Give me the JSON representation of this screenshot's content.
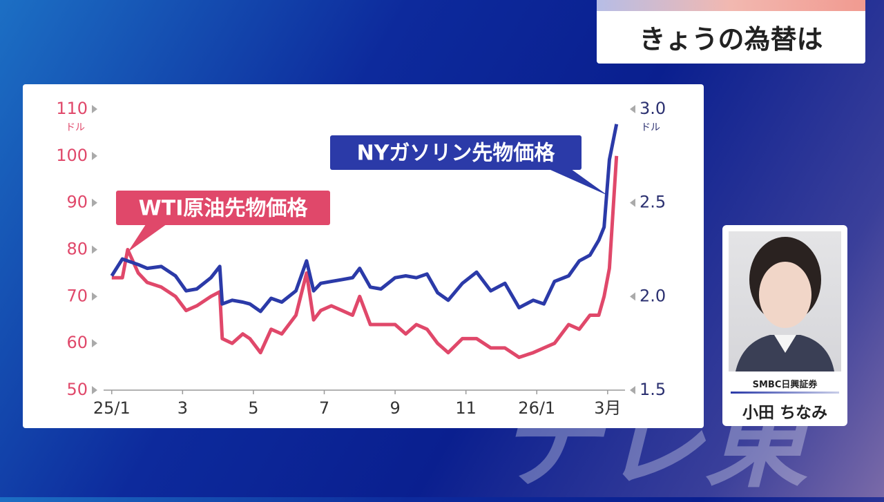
{
  "header": {
    "title": "きょうの為替は"
  },
  "chart_data": {
    "type": "line",
    "x": [
      0,
      0.3,
      0.45,
      0.75,
      1.0,
      1.4,
      1.8,
      2.1,
      2.4,
      2.8,
      3.05,
      3.12,
      3.4,
      3.7,
      3.9,
      4.2,
      4.5,
      4.8,
      5.2,
      5.5,
      5.7,
      5.9,
      6.2,
      6.5,
      6.8,
      7.0,
      7.3,
      7.6,
      8.0,
      8.3,
      8.6,
      8.9,
      9.2,
      9.5,
      9.9,
      10.3,
      10.7,
      11.1,
      11.5,
      11.9,
      12.2,
      12.5,
      12.9,
      13.2,
      13.5,
      13.75,
      13.9,
      14.05,
      14.25
    ],
    "xlim": [
      -0.6,
      14.9
    ],
    "xticks": [
      {
        "value": 0,
        "label": "25/1"
      },
      {
        "value": 2,
        "label": "3"
      },
      {
        "value": 4,
        "label": "5"
      },
      {
        "value": 6,
        "label": "7"
      },
      {
        "value": 8,
        "label": "9"
      },
      {
        "value": 10,
        "label": "11"
      },
      {
        "value": 12,
        "label": "26/1"
      },
      {
        "value": 14,
        "label": "3月"
      }
    ],
    "ylim": [
      50,
      110
    ],
    "yticks": [
      50,
      60,
      70,
      80,
      90,
      100,
      110
    ],
    "y_unit": "ドル",
    "y2lim": [
      1.5,
      3.0
    ],
    "y2ticks": [
      1.5,
      {
        "value": 2,
        "label": "2.0"
      },
      2.5,
      {
        "value": 3,
        "label": "3.0"
      }
    ],
    "y2_unit": "ドル",
    "series": [
      {
        "name": "WTI原油先物価格",
        "color": "#e0486a",
        "values": [
          74,
          74,
          80,
          75,
          73,
          72,
          70,
          67,
          68,
          70,
          71,
          61,
          60,
          62,
          61,
          58,
          63,
          62,
          66,
          75,
          65,
          67,
          68,
          67,
          66,
          70,
          64,
          64,
          64,
          62,
          64,
          63,
          60,
          58,
          61,
          61,
          59,
          59,
          57,
          58,
          59,
          60,
          64,
          63,
          66,
          66,
          70,
          76,
          100
        ]
      },
      {
        "name": "NYガソリン先物価格",
        "color": "#2b3aa8",
        "axis": "y2",
        "values": [
          2.11,
          2.2,
          2.19,
          2.17,
          2.15,
          2.16,
          2.11,
          2.03,
          2.04,
          2.1,
          2.16,
          1.96,
          1.98,
          1.97,
          1.96,
          1.92,
          1.99,
          1.97,
          2.03,
          2.19,
          2.03,
          2.07,
          2.08,
          2.09,
          2.1,
          2.15,
          2.05,
          2.04,
          2.1,
          2.11,
          2.1,
          2.12,
          2.02,
          1.98,
          2.07,
          2.13,
          2.03,
          2.07,
          1.94,
          1.98,
          1.96,
          2.08,
          2.11,
          2.19,
          2.22,
          2.3,
          2.37,
          2.73,
          2.92
        ]
      }
    ]
  },
  "guest": {
    "company": "SMBC日興証券",
    "name": "小田 ちなみ"
  },
  "watermark": "テレ東"
}
